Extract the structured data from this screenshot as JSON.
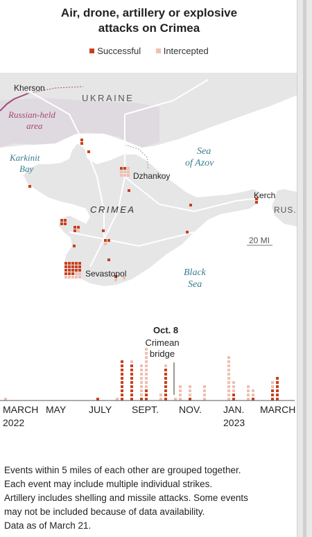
{
  "title_line1": "Air, drone, artillery or explosive",
  "title_line2": "attacks on Crimea",
  "legend": {
    "successful": "Successful",
    "intercepted": "Intercepted",
    "successful_color": "#c8401e",
    "intercepted_color": "#efbfb1"
  },
  "map_labels": {
    "kherson": "Kherson",
    "ukraine": "UKRAINE",
    "russian_held_1": "Russian-held",
    "russian_held_2": "area",
    "karkinit_1": "Karkinit",
    "karkinit_2": "Bay",
    "sea_azov_1": "Sea",
    "sea_azov_2": "of Azov",
    "dzhankoy": "Dzhankoy",
    "crimea": "CRIMEA",
    "kerch": "Kerch",
    "rus": "RUS.",
    "scale": "20 MI",
    "sevastopol": "Sevastopol",
    "black_1": "Black",
    "black_2": "Sea"
  },
  "timeline": {
    "annotation_title": "Oct. 8",
    "annotation_sub_1": "Crimean",
    "annotation_sub_2": "bridge",
    "axis": [
      {
        "label": "MARCH",
        "sub": "2022"
      },
      {
        "label": "MAY",
        "sub": ""
      },
      {
        "label": "JULY",
        "sub": ""
      },
      {
        "label": "SEPT.",
        "sub": ""
      },
      {
        "label": "NOV.",
        "sub": ""
      },
      {
        "label": "JAN.",
        "sub": "2023"
      },
      {
        "label": "MARCH",
        "sub": ""
      }
    ],
    "columns": [
      {
        "week": 0,
        "successful": 0,
        "intercepted": 1
      },
      {
        "week": 19,
        "successful": 1,
        "intercepted": 0
      },
      {
        "week": 23,
        "successful": 0,
        "intercepted": 1
      },
      {
        "week": 24,
        "successful": 10,
        "intercepted": 0
      },
      {
        "week": 26,
        "successful": 9,
        "intercepted": 1
      },
      {
        "week": 28,
        "successful": 1,
        "intercepted": 8
      },
      {
        "week": 29,
        "successful": 3,
        "intercepted": 10
      },
      {
        "week": 32,
        "successful": 0,
        "intercepted": 2
      },
      {
        "week": 33,
        "successful": 8,
        "intercepted": 1
      },
      {
        "week": 35,
        "successful": 0,
        "intercepted": 1
      },
      {
        "week": 36,
        "successful": 0,
        "intercepted": 4
      },
      {
        "week": 38,
        "successful": 1,
        "intercepted": 3
      },
      {
        "week": 41,
        "successful": 0,
        "intercepted": 4
      },
      {
        "week": 46,
        "successful": 0,
        "intercepted": 11
      },
      {
        "week": 47,
        "successful": 2,
        "intercepted": 3
      },
      {
        "week": 50,
        "successful": 0,
        "intercepted": 4
      },
      {
        "week": 51,
        "successful": 1,
        "intercepted": 2
      },
      {
        "week": 55,
        "successful": 3,
        "intercepted": 2
      },
      {
        "week": 56,
        "successful": 6,
        "intercepted": 0
      }
    ]
  },
  "notes": [
    "Events within 5 miles of each other are grouped together.",
    "Each event may include multiple individual strikes.",
    "Artillery includes shelling and missile attacks. Some events",
    "may not be included because of data availability.",
    "Data as of March 21."
  ]
}
